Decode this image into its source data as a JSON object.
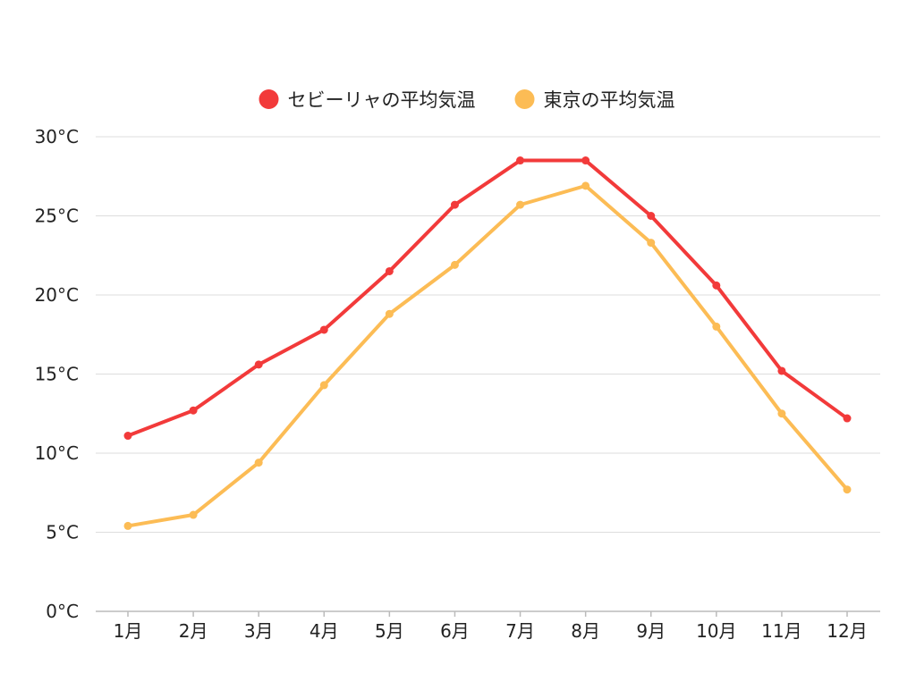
{
  "chart_data": {
    "type": "line",
    "title": "",
    "xlabel": "",
    "ylabel": "",
    "categories": [
      "1月",
      "2月",
      "3月",
      "4月",
      "5月",
      "6月",
      "7月",
      "8月",
      "9月",
      "10月",
      "11月",
      "12月"
    ],
    "series": [
      {
        "name": "セビーリャの平均気温",
        "color": "#f23a3a",
        "values": [
          11.1,
          12.7,
          15.6,
          17.8,
          21.5,
          25.7,
          28.5,
          28.5,
          25.0,
          20.6,
          15.2,
          12.2
        ]
      },
      {
        "name": "東京の平均気温",
        "color": "#fcbc55",
        "values": [
          5.4,
          6.1,
          9.4,
          14.3,
          18.8,
          21.9,
          25.7,
          26.9,
          23.3,
          18.0,
          12.5,
          7.7
        ]
      }
    ],
    "ylim": [
      0,
      30
    ],
    "yticks": [
      0,
      5,
      10,
      15,
      20,
      25,
      30
    ],
    "y_unit": "°C",
    "grid": true,
    "legend_position": "top-center"
  }
}
